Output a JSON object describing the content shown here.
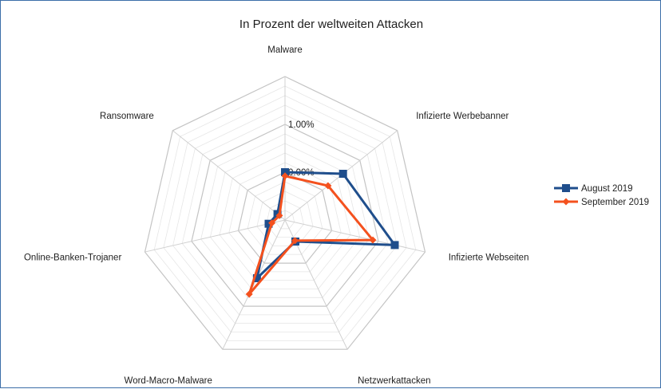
{
  "chart_data": {
    "type": "radar",
    "title": "In Prozent der weltweiten Attacken",
    "categories": [
      "Malware",
      "Infizierte Werbebanner",
      "Infizierte Webseiten",
      "Netzwerkattacken",
      "Word-Macro-Malware",
      "Online-Banken-Trojaner",
      "Ransomware"
    ],
    "rlim": [
      -1.0,
      2.0
    ],
    "tick_labels": [
      "0.00%",
      "1.00%"
    ],
    "grid": true,
    "legend": "right",
    "series": [
      {
        "name": "August 2019",
        "color": "#1f4e8c",
        "marker": "square",
        "values": [
          0.0,
          0.55,
          1.35,
          -0.5,
          0.35,
          -0.65,
          -0.8
        ]
      },
      {
        "name": "September 2019",
        "color": "#f4511e",
        "marker": "diamond",
        "values": [
          -0.08,
          0.15,
          0.88,
          -0.52,
          0.72,
          -0.72,
          -0.85
        ]
      }
    ]
  }
}
